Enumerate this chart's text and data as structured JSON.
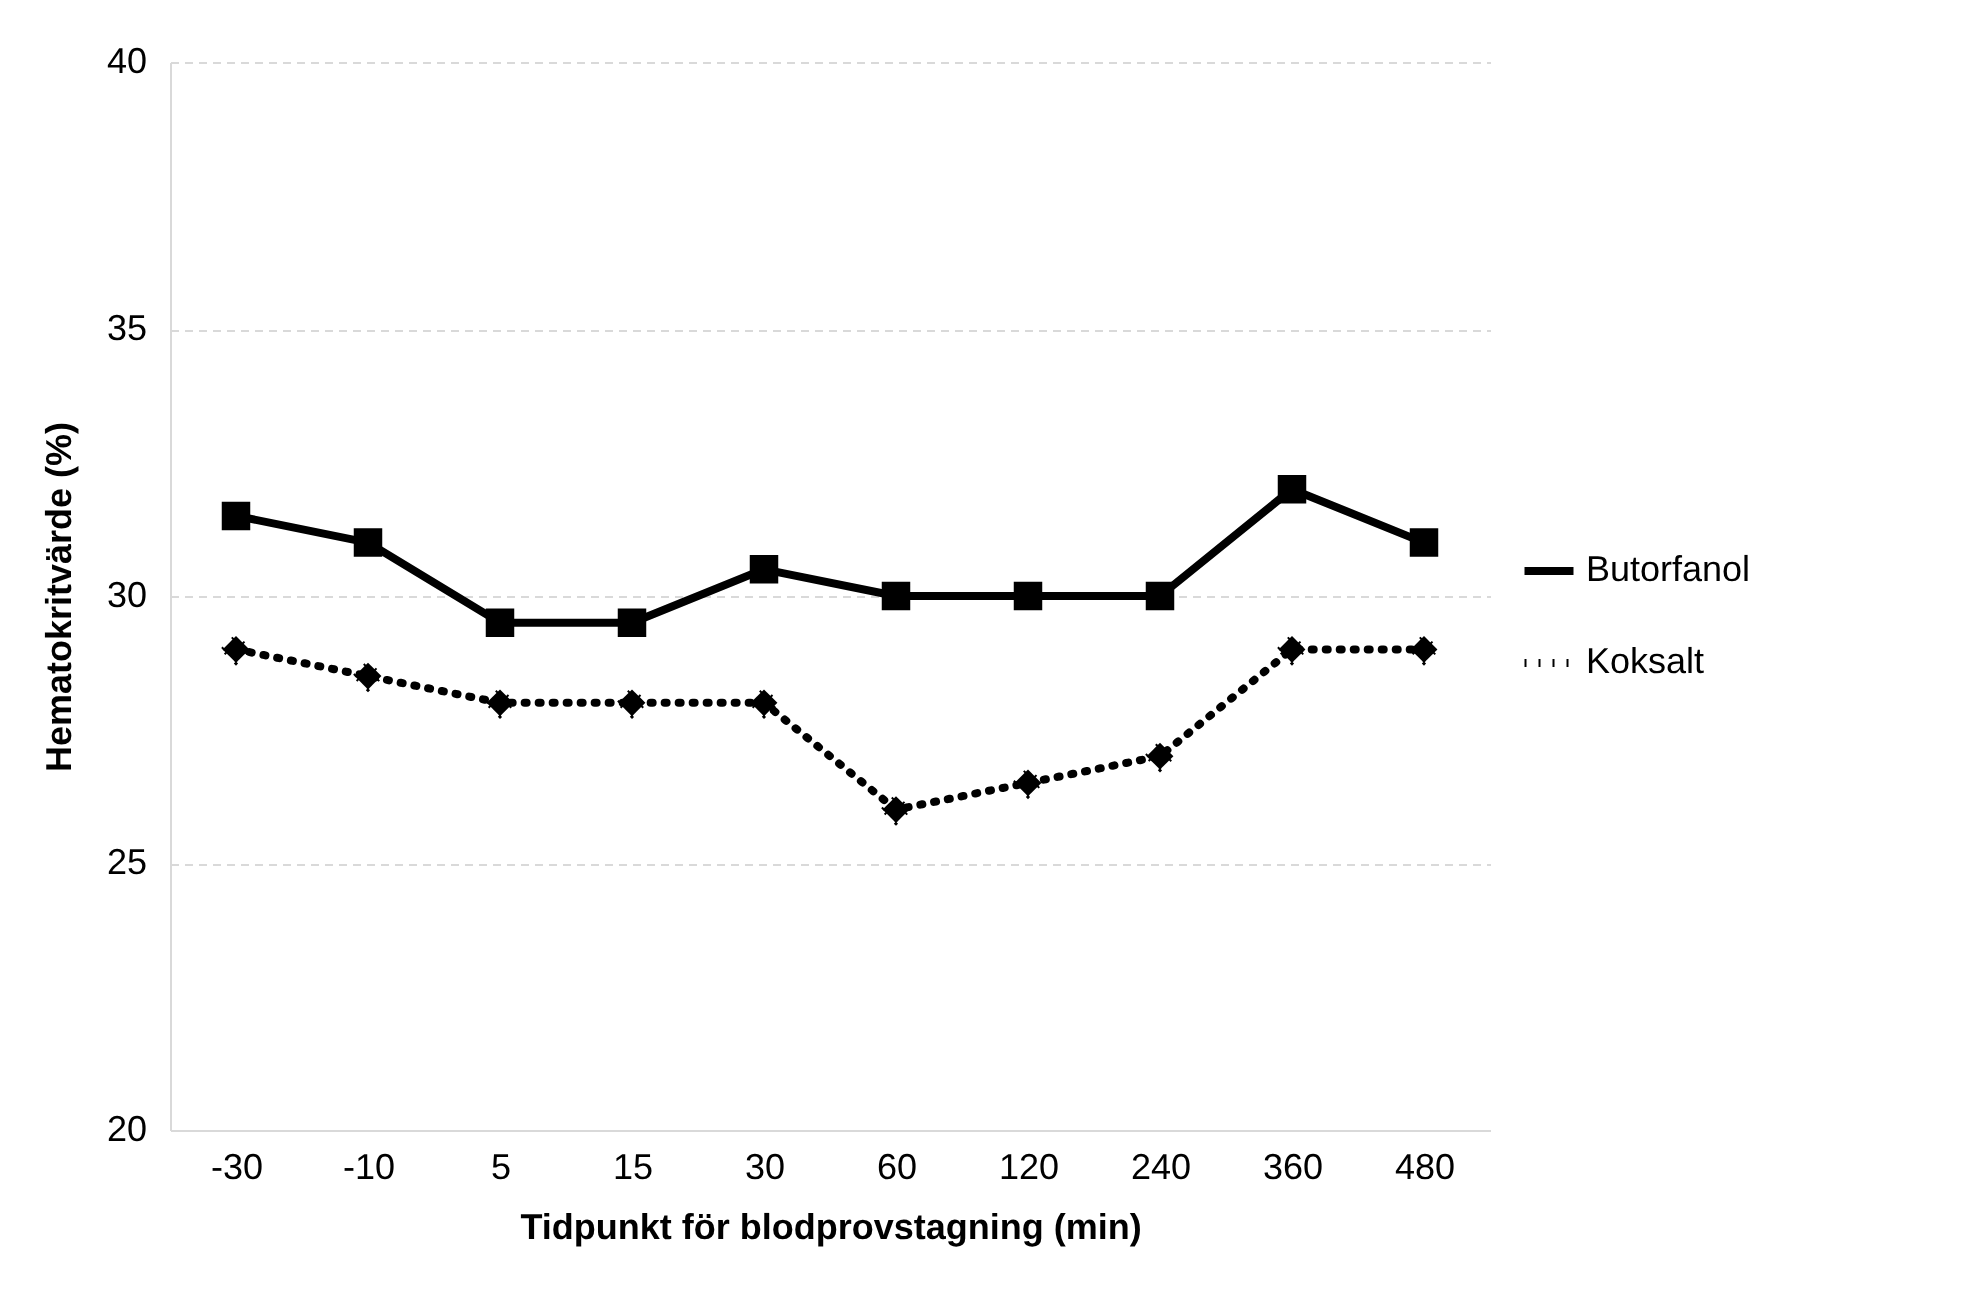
{
  "chart_data": {
    "type": "line",
    "xlabel": "Tidpunkt för blodprovstagning (min)",
    "ylabel": "Hematokritvärde (%)",
    "categories": [
      "-30",
      "-10",
      "5",
      "15",
      "30",
      "60",
      "120",
      "240",
      "360",
      "480"
    ],
    "series": [
      {
        "name": "Butorfanol",
        "color": "#000000",
        "marker": "square",
        "line_style": "solid",
        "values": [
          31.5,
          31,
          29.5,
          29.5,
          30.5,
          30,
          30,
          30,
          32,
          31
        ]
      },
      {
        "name": "Koksalt",
        "color": "#000000",
        "marker": "diamond",
        "line_style": "dotted",
        "values": [
          29,
          28.5,
          28,
          28,
          28,
          26,
          26.5,
          27,
          29,
          29
        ]
      }
    ],
    "ylim": [
      20,
      40
    ],
    "yticks": [
      20,
      25,
      30,
      35,
      40
    ],
    "grid": "y",
    "legend": "right"
  }
}
